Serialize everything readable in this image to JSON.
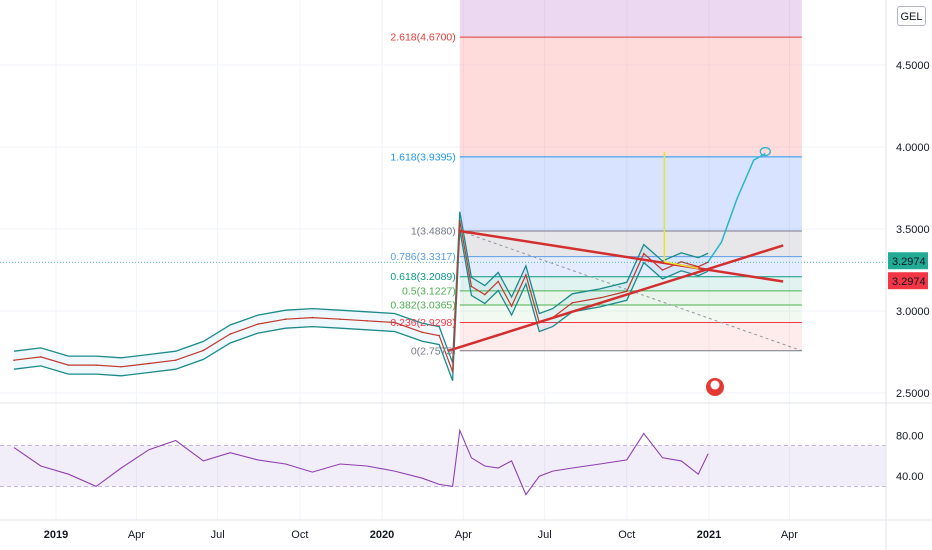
{
  "currency": "GEL",
  "colors": {
    "bb": "#1b8a8a",
    "ma": "#c0392b",
    "rsi": "#8e3fae",
    "trend": "#d32f2f",
    "proj": "#26b5c9",
    "spike": "#e6e62e"
  },
  "chart_data": [
    {
      "type": "line",
      "price_axis": {
        "ticks": [
          "4.5000",
          "4.0000",
          "3.5000",
          "3.0000",
          "2.5000"
        ],
        "range": [
          2.4,
          4.75
        ]
      },
      "time_axis": {
        "ticks": [
          "2019",
          "Apr",
          "Jul",
          "Oct",
          "2020",
          "Apr",
          "Jul",
          "Oct",
          "2021",
          "Apr"
        ]
      },
      "last_price": "3.2974",
      "fibonacci": [
        {
          "label": "2.618(4.6700)",
          "value": 4.67,
          "color": "#e53935"
        },
        {
          "label": "1.618(3.9395)",
          "value": 3.9395,
          "color": "#2196f3"
        },
        {
          "label": "1(3.4880)",
          "value": 3.488,
          "color": "#787b86"
        },
        {
          "label": "0.786(3.3317)",
          "value": 3.3317,
          "color": "#5c9ce6"
        },
        {
          "label": "0.618(3.2089)",
          "value": 3.2089,
          "color": "#089981"
        },
        {
          "label": "0.5(3.1227)",
          "value": 3.1227,
          "color": "#4caf50"
        },
        {
          "label": "0.382(3.0365)",
          "value": 3.0365,
          "color": "#4caf50"
        },
        {
          "label": "0.236(2.9298)",
          "value": 2.9298,
          "color": "#f23645"
        },
        {
          "label": "0(2.7575)",
          "value": 2.7575,
          "color": "#787b86"
        }
      ],
      "series": [
        {
          "name": "",
          "x": [
            "2018-11-15",
            "2018-12-15",
            "2019-01-15",
            "2019-02-15",
            "2019-03-15",
            "2019-04-15",
            "2019-05-15",
            "2019-06-15",
            "2019-07-15",
            "2019-08-15",
            "2019-09-15",
            "2019-10-15",
            "2019-11-15",
            "2019-12-15",
            "2020-01-15",
            "2020-02-15",
            "2020-03-05",
            "2020-03-20",
            "2020-03-28",
            "2020-04-10",
            "2020-04-25",
            "2020-05-10",
            "2020-05-25",
            "2020-06-10",
            "2020-06-25",
            "2020-07-10",
            "2020-08-01",
            "2020-09-01",
            "2020-10-01",
            "2020-10-20",
            "2020-11-10",
            "2020-12-01",
            "2020-12-20",
            "2020-12-31"
          ],
          "values": [
            2.7,
            2.72,
            2.67,
            2.67,
            2.66,
            2.68,
            2.7,
            2.76,
            2.86,
            2.92,
            2.95,
            2.96,
            2.95,
            2.94,
            2.93,
            2.87,
            2.85,
            2.63,
            3.55,
            3.15,
            3.1,
            3.18,
            3.03,
            3.22,
            2.93,
            2.96,
            3.05,
            3.08,
            3.12,
            3.35,
            3.25,
            3.3,
            3.27,
            3.2974
          ]
        }
      ],
      "projection": {
        "x": [
          "2020-12-31",
          "2021-01-15",
          "2021-02-01",
          "2021-02-20",
          "2021-03-05"
        ],
        "values": [
          3.3,
          3.42,
          3.68,
          3.92,
          3.96
        ]
      }
    },
    {
      "type": "line",
      "name": "RSI",
      "ticks": [
        "80.00",
        "40.00"
      ],
      "range": [
        0,
        100
      ],
      "bands": [
        70,
        30
      ],
      "series": [
        {
          "name": "",
          "x": [
            "2018-11-15",
            "2018-12-15",
            "2019-01-15",
            "2019-02-15",
            "2019-03-15",
            "2019-04-15",
            "2019-05-15",
            "2019-06-15",
            "2019-07-15",
            "2019-08-15",
            "2019-09-15",
            "2019-10-15",
            "2019-11-15",
            "2019-12-15",
            "2020-01-15",
            "2020-02-15",
            "2020-03-05",
            "2020-03-20",
            "2020-03-28",
            "2020-04-10",
            "2020-04-25",
            "2020-05-10",
            "2020-05-25",
            "2020-06-10",
            "2020-06-25",
            "2020-07-10",
            "2020-08-01",
            "2020-09-01",
            "2020-10-01",
            "2020-10-20",
            "2020-11-10",
            "2020-12-01",
            "2020-12-20",
            "2020-12-31"
          ],
          "values": [
            68,
            50,
            42,
            30,
            48,
            66,
            75,
            55,
            63,
            56,
            52,
            44,
            52,
            50,
            45,
            38,
            32,
            30,
            85,
            58,
            50,
            48,
            55,
            22,
            40,
            45,
            48,
            52,
            56,
            82,
            58,
            55,
            42,
            62
          ]
        }
      ]
    }
  ]
}
